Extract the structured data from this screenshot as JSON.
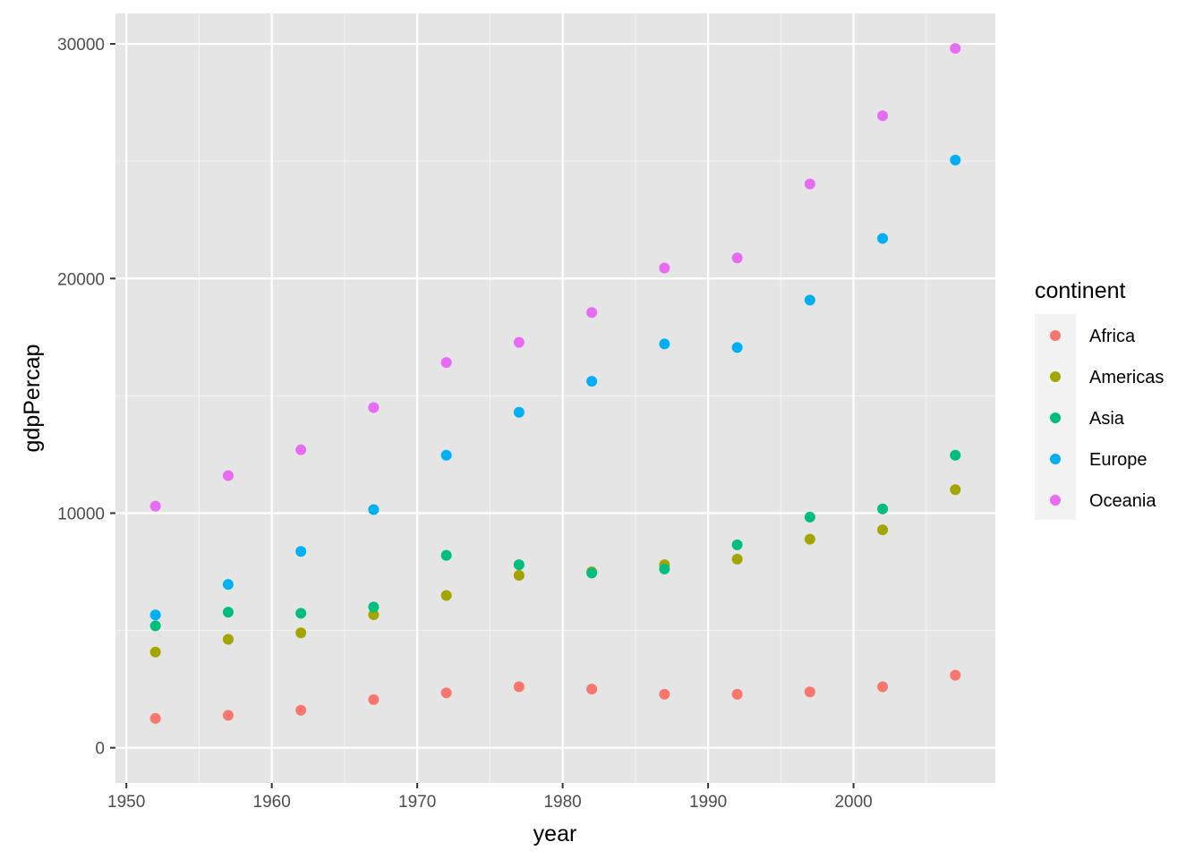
{
  "chart_data": {
    "type": "scatter",
    "title": "",
    "xlabel": "year",
    "ylabel": "gdpPercap",
    "xlim": [
      1949.25,
      2009.75
    ],
    "ylim": [
      -1500,
      31300
    ],
    "x_ticks": [
      1950,
      1960,
      1970,
      1980,
      1990,
      2000
    ],
    "y_ticks": [
      0,
      10000,
      20000,
      30000
    ],
    "grid": true,
    "background": "#e5e5e5",
    "legend": {
      "title": "continent",
      "position": "right"
    },
    "x": [
      1952,
      1957,
      1962,
      1967,
      1972,
      1977,
      1982,
      1987,
      1992,
      1997,
      2002,
      2007
    ],
    "series": [
      {
        "name": "Africa",
        "color": "#F8766D",
        "values": [
          1250,
          1385,
          1600,
          2050,
          2340,
          2600,
          2500,
          2280,
          2280,
          2380,
          2600,
          3090
        ]
      },
      {
        "name": "Americas",
        "color": "#A3A500",
        "values": [
          4080,
          4620,
          4900,
          5670,
          6490,
          7350,
          7500,
          7800,
          8040,
          8890,
          9290,
          11000
        ]
      },
      {
        "name": "Asia",
        "color": "#00BF7D",
        "values": [
          5200,
          5780,
          5730,
          6000,
          8200,
          7800,
          7450,
          7620,
          8650,
          9830,
          10180,
          12470
        ]
      },
      {
        "name": "Europe",
        "color": "#00B0F6",
        "values": [
          5660,
          6960,
          8370,
          10150,
          12470,
          14300,
          15620,
          17210,
          17060,
          19080,
          21710,
          25050
        ]
      },
      {
        "name": "Oceania",
        "color": "#E76BF3",
        "values": [
          10300,
          11600,
          12700,
          14500,
          16420,
          17280,
          18550,
          20450,
          20880,
          24030,
          26940,
          29810
        ]
      }
    ]
  }
}
